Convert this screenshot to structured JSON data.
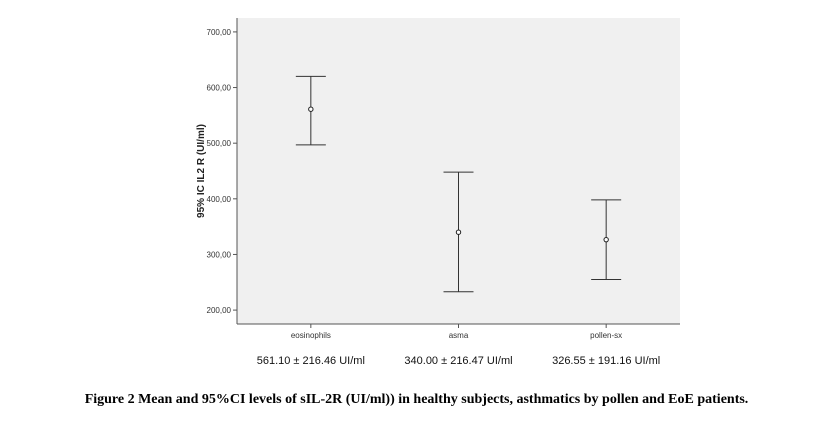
{
  "chart_data": {
    "type": "errorbar",
    "ylabel": "95% IC IL2 R (UI/ml)",
    "y_ticks": [
      "200,00",
      "300,00",
      "400,00",
      "500,00",
      "600,00",
      "700,00"
    ],
    "y_tick_values": [
      200,
      300,
      400,
      500,
      600,
      700
    ],
    "ylim": [
      175,
      725
    ],
    "grid": false,
    "categories": [
      "eosinophils",
      "asma",
      "pollen-sx"
    ],
    "means": [
      561.1,
      340.0,
      326.55
    ],
    "ci_lower": [
      497,
      233,
      255
    ],
    "ci_upper": [
      620,
      448,
      398
    ],
    "stats_labels": [
      "561.10 ± 216.46 UI/ml",
      "340.00 ± 216.47 UI/ml",
      "326.55 ± 191.16 UI/ml"
    ],
    "colors": {
      "plot_background": "#f0f0f0",
      "whisker": "#333333"
    }
  },
  "caption": "Figure 2 Mean and 95%CI levels of sIL-2R (UI/ml)) in healthy subjects, asthmatics by pollen and EoE patients."
}
